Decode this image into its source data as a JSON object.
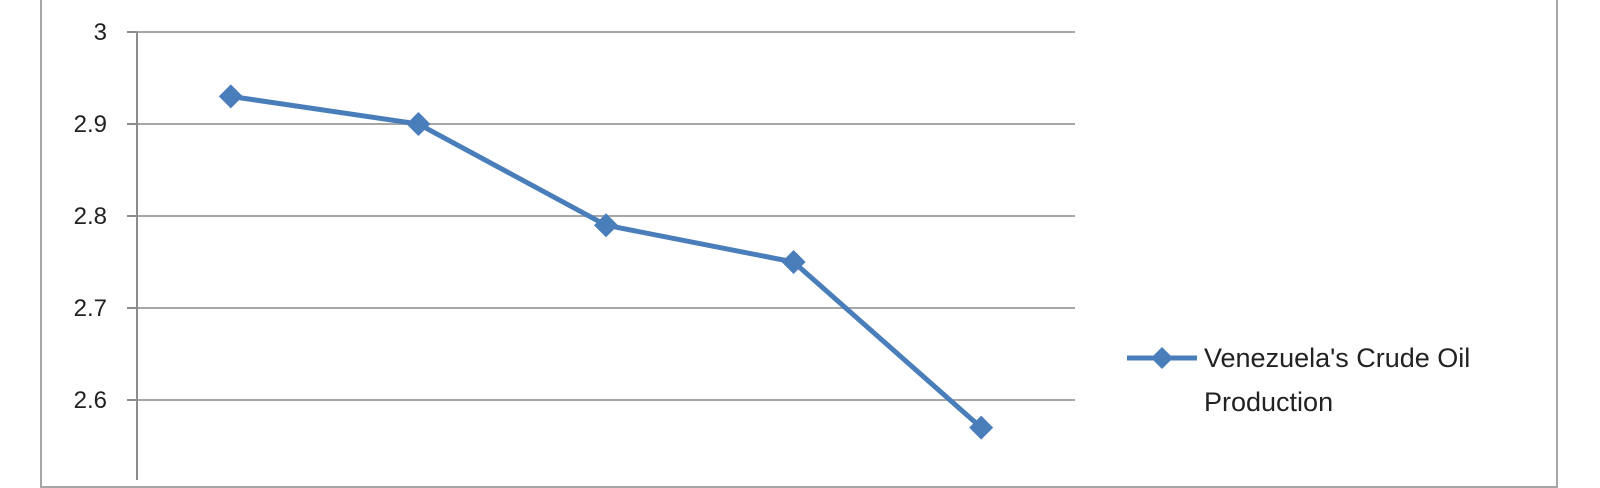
{
  "chart_data": {
    "type": "line",
    "title": "",
    "xlabel": "",
    "ylabel": "",
    "ylim": [
      2.55,
      3.0
    ],
    "yticks": [
      2.6,
      2.7,
      2.8,
      2.9,
      3
    ],
    "ytick_labels": [
      "2.6",
      "2.7",
      "2.8",
      "2.9",
      "3"
    ],
    "grid": true,
    "legend_position": "right",
    "series": [
      {
        "name": "Venezuela's Crude Oil Production",
        "legend_lines": [
          "Venezuela's Crude Oil",
          "Production"
        ],
        "values": [
          2.93,
          2.9,
          2.79,
          2.75,
          2.57
        ],
        "color": "#4a7ebb",
        "marker": "diamond"
      }
    ]
  }
}
